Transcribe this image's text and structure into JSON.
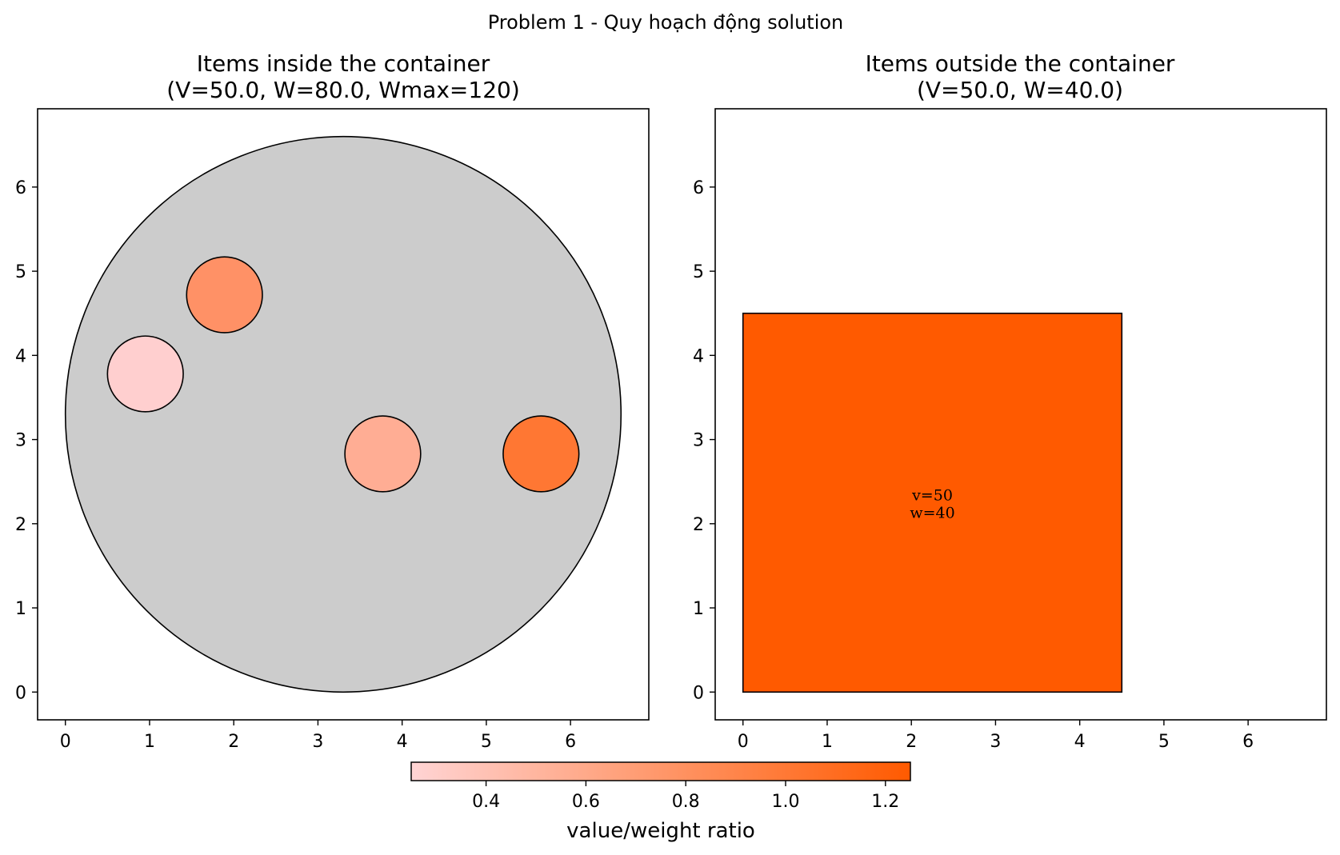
{
  "suptitle": "Problem 1 - Quy hoạch động solution",
  "chart_data": [
    {
      "type": "scatter",
      "title_line1": "Items inside the container",
      "title_line2": "(V=50.0, W=80.0, Wmax=120)",
      "xlim": [
        -0.33,
        6.93
      ],
      "ylim": [
        -0.33,
        6.93
      ],
      "xticks": [
        0,
        1,
        2,
        3,
        4,
        5,
        6
      ],
      "yticks": [
        0,
        1,
        2,
        3,
        4,
        5,
        6
      ],
      "container": {
        "shape": "circle",
        "cx": 3.3,
        "cy": 3.3,
        "r": 3.3,
        "color": "#cccccc"
      },
      "items": [
        {
          "shape": "circle",
          "cx": 1.89,
          "cy": 4.72,
          "r": 0.45,
          "ratio": 0.82,
          "color": "#ff9166"
        },
        {
          "shape": "circle",
          "cx": 0.95,
          "cy": 3.78,
          "r": 0.45,
          "ratio": 0.28,
          "color": "#ffcfcf"
        },
        {
          "shape": "circle",
          "cx": 3.77,
          "cy": 2.83,
          "r": 0.45,
          "ratio": 0.58,
          "color": "#ffad94"
        },
        {
          "shape": "circle",
          "cx": 5.65,
          "cy": 2.83,
          "r": 0.45,
          "ratio": 1.05,
          "color": "#ff7733"
        }
      ]
    },
    {
      "type": "scatter",
      "title_line1": "Items outside the container",
      "title_line2": "(V=50.0, W=40.0)",
      "xlim": [
        -0.33,
        6.93
      ],
      "ylim": [
        -0.33,
        6.93
      ],
      "xticks": [
        0,
        1,
        2,
        3,
        4,
        5,
        6
      ],
      "yticks": [
        0,
        1,
        2,
        3,
        4,
        5,
        6
      ],
      "items": [
        {
          "shape": "square",
          "x": 0,
          "y": 0,
          "size": 4.5,
          "ratio": 1.25,
          "color": "#ff5a00",
          "label_v": "v=50",
          "label_w": "w=40"
        }
      ]
    }
  ],
  "colorbar": {
    "label": "value/weight ratio",
    "range": [
      0.25,
      1.25
    ],
    "ticks": [
      "0.4",
      "0.6",
      "0.8",
      "1.0",
      "1.2"
    ],
    "tick_values": [
      0.4,
      0.6,
      0.8,
      1.0,
      1.2
    ],
    "color_low": "#ffd4d4",
    "color_high": "#ff5a00"
  }
}
